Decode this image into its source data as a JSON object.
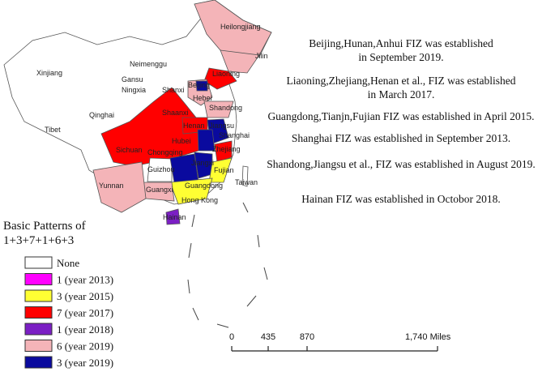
{
  "provinces": [
    "Heilongjiang",
    "Jilin",
    "Liaoning",
    "Xinjiang",
    "Neimenggu",
    "Beijing",
    "Hebei",
    "Gansu",
    "Ningxia",
    "Shanxi",
    "Shandong",
    "Qinghai",
    "Shaanxi",
    "Henan",
    "Jiangsu",
    "Shanghai",
    "Tibet",
    "Sichuan",
    "Hubei",
    "Zhejiang",
    "Chongqing",
    "Jiangxi",
    "Fujian",
    "Guizhou",
    "Yunnan",
    "Guangxi",
    "Guangdong",
    "Taiwan",
    "Hong Kong",
    "Hainan"
  ],
  "annotations": [
    [
      "Beijing,Hunan,Anhui FIZ was established",
      "in September 2019."
    ],
    [
      "Liaoning,Zhejiang,Henan et al., FIZ was established",
      "in March 2017."
    ],
    [
      "Guangdong,Tianjn,Fujian FIZ was established in April 2015."
    ],
    [
      "Shanghai FIZ was established in September 2013."
    ],
    [
      "Shandong,Jiangsu et al., FIZ was established in August 2019."
    ],
    [
      "Hainan FIZ was established in Octobor 2018."
    ]
  ],
  "legend": {
    "title": [
      "Basic Patterns of",
      "1+3+7+1+6+3"
    ],
    "items": [
      {
        "label": "None",
        "color": "#ffffff"
      },
      {
        "label": "1 (year 2013)",
        "color": "#ff00ff"
      },
      {
        "label": "3 (year 2015)",
        "color": "#ffff33"
      },
      {
        "label": "7 (year 2017)",
        "color": "#ff0000"
      },
      {
        "label": "1 (year 2018)",
        "color": "#7b1fc4"
      },
      {
        "label": "6 (year 2019)",
        "color": "#f4b4b8"
      },
      {
        "label": "3 (year 2019)",
        "color": "#0a0a9e"
      }
    ]
  },
  "scale_bar": [
    "0",
    "435",
    "870",
    "1,740 Miles"
  ]
}
